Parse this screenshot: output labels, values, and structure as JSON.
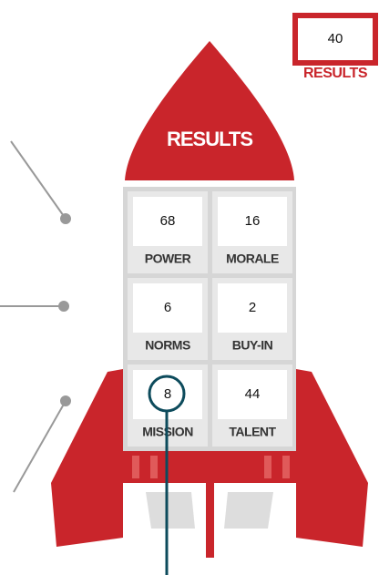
{
  "results_box": {
    "value": 40,
    "label": "RESULTS"
  },
  "rocket": {
    "nose_label": "RESULTS",
    "cells": [
      {
        "value": 68,
        "label": "POWER"
      },
      {
        "value": 16,
        "label": "MORALE"
      },
      {
        "value": 6,
        "label": "NORMS"
      },
      {
        "value": 2,
        "label": "BUY-IN"
      },
      {
        "value": 8,
        "label": "MISSION"
      },
      {
        "value": 44,
        "label": "TALENT"
      }
    ]
  }
}
